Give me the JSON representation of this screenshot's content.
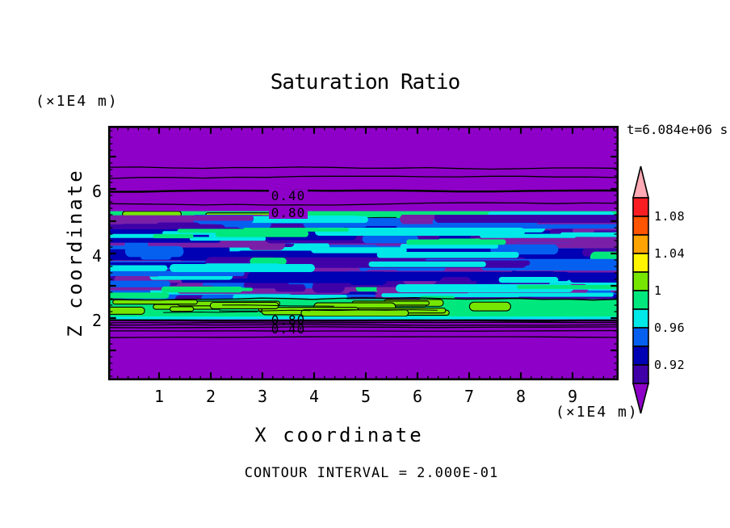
{
  "chart_data": {
    "type": "heatmap",
    "title": "Saturation Ratio",
    "time_label": "t=6.084e+06 s",
    "xlabel": "X coordinate",
    "ylabel": "Z coordinate",
    "x_unit_label": "(×1E4 m)",
    "z_unit_label": "(×1E4 m)",
    "contour_note": "CONTOUR INTERVAL = 2.000E-01",
    "contour_interval": 0.2,
    "xlim": [
      0,
      9.9
    ],
    "zlim": [
      0.07,
      7.95
    ],
    "x_major_ticks": [
      1,
      2,
      3,
      4,
      5,
      6,
      7,
      8,
      9
    ],
    "z_major_ticks": [
      1,
      2,
      3,
      4,
      5,
      6,
      7
    ],
    "z_labeled_ticks": [
      2,
      4,
      6
    ],
    "minor_tick_step": 0.2,
    "colorbar": {
      "tick_labels": [
        "1.08",
        "1.04",
        "1",
        "0.96",
        "0.92"
      ],
      "tick_values": [
        1.08,
        1.04,
        1.0,
        0.96,
        0.92
      ],
      "min": 0.9,
      "max": 1.1,
      "cell_size": 0.02,
      "cells": [
        {
          "range": [
            1.08,
            1.1
          ],
          "color": "#fa1e23"
        },
        {
          "range": [
            1.06,
            1.08
          ],
          "color": "#ff5400"
        },
        {
          "range": [
            1.04,
            1.06
          ],
          "color": "#ffa300"
        },
        {
          "range": [
            1.02,
            1.04
          ],
          "color": "#fff500"
        },
        {
          "range": [
            1.0,
            1.02
          ],
          "color": "#76e600"
        },
        {
          "range": [
            0.98,
            1.0
          ],
          "color": "#00e87d"
        },
        {
          "range": [
            0.96,
            0.98
          ],
          "color": "#00e8e8"
        },
        {
          "range": [
            0.94,
            0.96
          ],
          "color": "#0560f0"
        },
        {
          "range": [
            0.92,
            0.94
          ],
          "color": "#0000b4"
        },
        {
          "range": [
            0.9,
            0.92
          ],
          "color": "#3f00a8"
        }
      ],
      "above_max_color": "#ffaab4",
      "below_min_color": "#8e00c8"
    },
    "contour_labels": [
      {
        "text": "0.40",
        "x": 3.5,
        "z": 5.78,
        "masked": true
      },
      {
        "text": "0.80",
        "x": 3.5,
        "z": 5.25,
        "masked": true
      },
      {
        "text": "0.80",
        "x": 3.5,
        "z": 1.93,
        "masked": false
      },
      {
        "text": "0.40",
        "x": 3.5,
        "z": 1.65,
        "masked": false
      }
    ],
    "upper_contour_lines": [
      {
        "z": 6.68,
        "value": 0.0,
        "thick": false
      },
      {
        "z": 6.33,
        "value": 0.2,
        "thick": false
      },
      {
        "z": 5.9,
        "value": 0.4,
        "thick": true
      },
      {
        "z": 5.55,
        "value": 0.6,
        "thick": false
      },
      {
        "z": 5.3,
        "value": 0.8,
        "thick": false
      }
    ],
    "lower_contour_lines": [
      {
        "z": 1.94,
        "value": 0.8,
        "thick": true
      },
      {
        "z": 1.86,
        "value": 0.6,
        "thick": false
      },
      {
        "z": 1.79,
        "value": 0.4,
        "thick": false
      },
      {
        "z": 1.71,
        "value": 0.2,
        "thick": false
      },
      {
        "z": 1.6,
        "value": 0.0,
        "thick": false
      },
      {
        "z": 1.4,
        "value": 0.0,
        "thick": false
      }
    ],
    "field_bands": [
      {
        "name": "upper-background",
        "z_range": [
          5.28,
          7.95
        ],
        "colors": [
          "purple"
        ]
      },
      {
        "name": "upper-interface",
        "z_range": [
          4.83,
          5.28
        ],
        "colors": [
          "springgreen",
          "cyan",
          "chartreuse"
        ]
      },
      {
        "name": "mixing-zone",
        "z_range": [
          2.58,
          4.83
        ],
        "colors": [
          "navy",
          "indigo",
          "purple-dark",
          "blue",
          "cyan",
          "springgreen"
        ]
      },
      {
        "name": "lower-interface",
        "z_range": [
          2.05,
          2.58
        ],
        "colors": [
          "springgreen",
          "chartreuse",
          "cyan"
        ]
      },
      {
        "name": "lower-background",
        "z_range": [
          0.07,
          2.05
        ],
        "colors": [
          "purple"
        ]
      }
    ],
    "palette": {
      "purple": "#8e00c8",
      "purple-dark": "#7a1fa8",
      "indigo": "#3f00a8",
      "navy": "#0000b4",
      "blue": "#0560f0",
      "cyan": "#00e8e8",
      "springgreen": "#00e87d",
      "chartreuse": "#76e600"
    }
  }
}
